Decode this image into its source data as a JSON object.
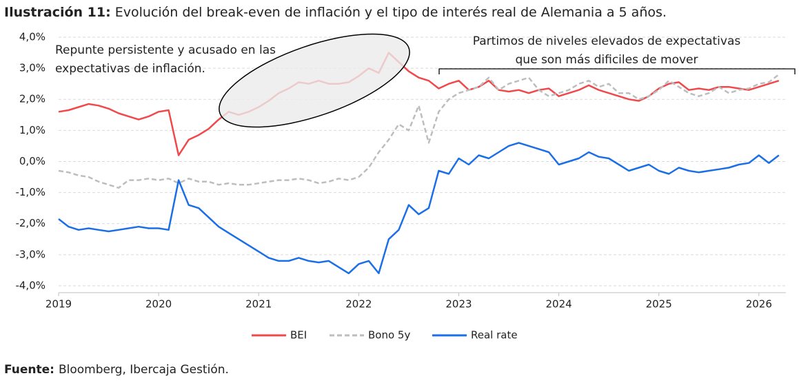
{
  "chart_data": {
    "type": "line",
    "title_label": "Ilustración 11:",
    "title": "Evolución del break-even de inflación y el tipo de interés real de Alemania a 5 años.",
    "source_label": "Fuente:",
    "source": "Bloomberg, Ibercaja Gestión.",
    "annotations": [
      {
        "lines": [
          "Repunte persistente y acusado en las",
          "expectativas de inflación."
        ]
      },
      {
        "lines": [
          "Partimos de niveles elevados de expectativas",
          "que son más dificiles de mover"
        ]
      }
    ],
    "x": [
      2019.0,
      2019.1,
      2019.2,
      2019.3,
      2019.4,
      2019.5,
      2019.6,
      2019.7,
      2019.8,
      2019.9,
      2020.0,
      2020.1,
      2020.2,
      2020.3,
      2020.4,
      2020.5,
      2020.6,
      2020.7,
      2020.8,
      2020.9,
      2021.0,
      2021.1,
      2021.2,
      2021.3,
      2021.4,
      2021.5,
      2021.6,
      2021.7,
      2021.8,
      2021.9,
      2022.0,
      2022.1,
      2022.2,
      2022.3,
      2022.4,
      2022.5,
      2022.6,
      2022.7,
      2022.8,
      2022.9,
      2023.0,
      2023.1,
      2023.2,
      2023.3,
      2023.4,
      2023.5,
      2023.6,
      2023.7,
      2023.8,
      2023.9,
      2024.0,
      2024.1,
      2024.2,
      2024.3,
      2024.4,
      2024.5,
      2024.6,
      2024.7,
      2024.8,
      2024.9,
      2025.0,
      2025.1,
      2025.2,
      2025.3,
      2025.4,
      2025.5,
      2025.6,
      2025.7,
      2025.8,
      2025.9,
      2026.0,
      2026.1,
      2026.2
    ],
    "series": [
      {
        "name": "BEI",
        "color": "#f0484b",
        "dash": "solid",
        "values": [
          1.6,
          1.65,
          1.75,
          1.85,
          1.8,
          1.7,
          1.55,
          1.45,
          1.35,
          1.45,
          1.6,
          1.65,
          0.2,
          0.7,
          0.85,
          1.05,
          1.35,
          1.6,
          1.5,
          1.6,
          1.75,
          1.95,
          2.2,
          2.35,
          2.55,
          2.5,
          2.6,
          2.5,
          2.5,
          2.55,
          2.75,
          3.0,
          2.85,
          3.5,
          3.2,
          2.9,
          2.7,
          2.6,
          2.35,
          2.5,
          2.6,
          2.3,
          2.4,
          2.6,
          2.3,
          2.25,
          2.3,
          2.2,
          2.3,
          2.35,
          2.1,
          2.2,
          2.3,
          2.45,
          2.3,
          2.2,
          2.1,
          2.0,
          1.95,
          2.1,
          2.35,
          2.5,
          2.55,
          2.3,
          2.35,
          2.3,
          2.4,
          2.4,
          2.35,
          2.3,
          2.4,
          2.5,
          2.6
        ]
      },
      {
        "name": "Bono 5y",
        "color": "#bdbdbd",
        "dash": "dashed",
        "values": [
          -0.3,
          -0.35,
          -0.45,
          -0.5,
          -0.65,
          -0.75,
          -0.85,
          -0.6,
          -0.6,
          -0.55,
          -0.6,
          -0.55,
          -0.7,
          -0.55,
          -0.65,
          -0.65,
          -0.75,
          -0.7,
          -0.75,
          -0.75,
          -0.7,
          -0.65,
          -0.6,
          -0.6,
          -0.55,
          -0.6,
          -0.7,
          -0.65,
          -0.55,
          -0.6,
          -0.5,
          -0.2,
          0.3,
          0.7,
          1.2,
          1.0,
          1.8,
          0.6,
          1.6,
          2.0,
          2.2,
          2.3,
          2.4,
          2.7,
          2.3,
          2.5,
          2.6,
          2.7,
          2.3,
          2.1,
          2.2,
          2.3,
          2.5,
          2.6,
          2.4,
          2.5,
          2.2,
          2.2,
          2.0,
          2.1,
          2.3,
          2.6,
          2.4,
          2.2,
          2.1,
          2.2,
          2.4,
          2.2,
          2.3,
          2.35,
          2.5,
          2.55,
          2.8
        ]
      },
      {
        "name": "Real rate",
        "color": "#1a6ee8",
        "dash": "solid",
        "values": [
          -1.85,
          -2.1,
          -2.2,
          -2.15,
          -2.2,
          -2.25,
          -2.2,
          -2.15,
          -2.1,
          -2.15,
          -2.15,
          -2.2,
          -0.6,
          -1.4,
          -1.5,
          -1.8,
          -2.1,
          -2.3,
          -2.5,
          -2.7,
          -2.9,
          -3.1,
          -3.2,
          -3.2,
          -3.1,
          -3.2,
          -3.25,
          -3.2,
          -3.4,
          -3.6,
          -3.3,
          -3.2,
          -3.6,
          -2.5,
          -2.2,
          -1.4,
          -1.7,
          -1.5,
          -0.3,
          -0.4,
          0.1,
          -0.1,
          0.2,
          0.1,
          0.3,
          0.5,
          0.6,
          0.5,
          0.4,
          0.3,
          -0.1,
          0.0,
          0.1,
          0.3,
          0.15,
          0.1,
          -0.1,
          -0.3,
          -0.2,
          -0.1,
          -0.3,
          -0.4,
          -0.2,
          -0.3,
          -0.35,
          -0.3,
          -0.25,
          -0.2,
          -0.1,
          -0.05,
          0.2,
          -0.05,
          0.2
        ]
      }
    ],
    "xlim": [
      2019,
      2026.27
    ],
    "xticks": [
      2019,
      2020,
      2021,
      2022,
      2023,
      2024,
      2025,
      2026
    ],
    "ylim": [
      -4.2,
      4.0
    ],
    "yticks": [
      {
        "value": 4,
        "label": "4,0%"
      },
      {
        "value": 3,
        "label": "3,0%"
      },
      {
        "value": 2,
        "label": "2,0%"
      },
      {
        "value": 1,
        "label": "1,0%"
      },
      {
        "value": 0,
        "label": "0,0%"
      },
      {
        "value": -1,
        "label": "-1,0%"
      },
      {
        "value": -2,
        "label": "-2,0%"
      },
      {
        "value": -3,
        "label": "-3,0%"
      },
      {
        "value": -4,
        "label": "-4,0%"
      }
    ],
    "grid": true,
    "legend": "bottom"
  }
}
